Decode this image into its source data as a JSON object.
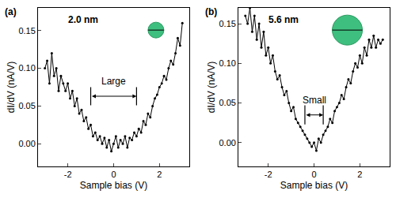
{
  "chart_data": [
    {
      "type": "line",
      "title": "(a)",
      "x_label": "Sample bias (V)",
      "y_label": "dI/dV (nA/V)",
      "x": [
        -3.0,
        -2.9,
        -2.8,
        -2.7,
        -2.6,
        -2.5,
        -2.4,
        -2.3,
        -2.2,
        -2.1,
        -2.0,
        -1.9,
        -1.8,
        -1.7,
        -1.6,
        -1.5,
        -1.4,
        -1.3,
        -1.2,
        -1.1,
        -1.0,
        -0.9,
        -0.8,
        -0.7,
        -0.6,
        -0.5,
        -0.4,
        -0.3,
        -0.2,
        -0.1,
        0.0,
        0.1,
        0.2,
        0.3,
        0.4,
        0.5,
        0.6,
        0.7,
        0.8,
        0.9,
        1.0,
        1.1,
        1.2,
        1.3,
        1.4,
        1.5,
        1.6,
        1.7,
        1.8,
        1.9,
        2.0,
        2.1,
        2.2,
        2.3,
        2.4,
        2.5,
        2.6,
        2.7,
        2.8,
        2.9,
        3.0
      ],
      "values": [
        0.1,
        0.11,
        0.08,
        0.12,
        0.09,
        0.1,
        0.07,
        0.09,
        0.08,
        0.07,
        0.08,
        0.06,
        0.07,
        0.05,
        0.06,
        0.04,
        0.045,
        0.03,
        0.035,
        0.02,
        0.025,
        0.01,
        0.015,
        0.005,
        0.01,
        0.0,
        0.008,
        -0.005,
        0.005,
        -0.01,
        0.0,
        0.01,
        -0.005,
        0.005,
        0.0,
        0.01,
        -0.005,
        0.008,
        0.005,
        0.015,
        0.01,
        0.02,
        0.015,
        0.03,
        0.025,
        0.04,
        0.035,
        0.05,
        0.06,
        0.065,
        0.075,
        0.08,
        0.09,
        0.085,
        0.1,
        0.11,
        0.105,
        0.12,
        0.14,
        0.13,
        0.16
      ],
      "color": "#000000",
      "marker": "circle",
      "xlim": [
        -3.3,
        3.3
      ],
      "xticks": [
        -2,
        0,
        2
      ],
      "ylim": [
        -0.03,
        0.18
      ],
      "yticks": [
        {
          "value": 0,
          "label": "0.00"
        },
        {
          "value": 0.05,
          "label": "0.05"
        },
        {
          "value": 0.1,
          "label": "0.10"
        },
        {
          "value": 0.15,
          "label": "0.15"
        }
      ],
      "annotations": [
        {
          "text": "2.0 nm"
        },
        {
          "text": "Large",
          "span": [
            -1,
            1
          ],
          "y": 0.063
        }
      ]
    },
    {
      "type": "line",
      "title": "(b)",
      "x_label": "Sample bias (V)",
      "y_label": "dI/dV (nA/V)",
      "x": [
        -3.0,
        -2.9,
        -2.8,
        -2.7,
        -2.6,
        -2.5,
        -2.4,
        -2.3,
        -2.2,
        -2.1,
        -2.0,
        -1.9,
        -1.8,
        -1.7,
        -1.6,
        -1.5,
        -1.4,
        -1.3,
        -1.2,
        -1.1,
        -1.0,
        -0.9,
        -0.8,
        -0.7,
        -0.6,
        -0.5,
        -0.4,
        -0.3,
        -0.2,
        -0.1,
        0.0,
        0.1,
        0.2,
        0.3,
        0.4,
        0.5,
        0.6,
        0.7,
        0.8,
        0.9,
        1.0,
        1.1,
        1.2,
        1.3,
        1.4,
        1.5,
        1.6,
        1.7,
        1.8,
        1.9,
        2.0,
        2.1,
        2.2,
        2.3,
        2.4,
        2.5,
        2.6,
        2.7,
        2.8,
        2.9,
        3.0
      ],
      "values": [
        0.16,
        0.15,
        0.17,
        0.14,
        0.16,
        0.13,
        0.15,
        0.12,
        0.14,
        0.11,
        0.12,
        0.1,
        0.11,
        0.09,
        0.08,
        0.085,
        0.07,
        0.06,
        0.065,
        0.05,
        0.04,
        0.045,
        0.03,
        0.025,
        0.02,
        0.015,
        0.01,
        0.005,
        0.0,
        -0.005,
        0.0,
        -0.01,
        0.005,
        0.0,
        0.01,
        0.015,
        0.02,
        0.03,
        0.025,
        0.04,
        0.045,
        0.05,
        0.06,
        0.055,
        0.07,
        0.08,
        0.075,
        0.09,
        0.1,
        0.095,
        0.11,
        0.1,
        0.12,
        0.11,
        0.13,
        0.12,
        0.135,
        0.12,
        0.13,
        0.125,
        0.13
      ],
      "color": "#000000",
      "marker": "circle",
      "xlim": [
        -3.3,
        3.3
      ],
      "xticks": [
        -2,
        0,
        2
      ],
      "ylim": [
        -0.03,
        0.17
      ],
      "yticks": [
        {
          "value": 0,
          "label": "0.00"
        },
        {
          "value": 0.05,
          "label": "0.05"
        },
        {
          "value": 0.1,
          "label": "0.10"
        },
        {
          "value": 0.15,
          "label": "0.15"
        }
      ],
      "annotations": [
        {
          "text": "5.6 nm"
        },
        {
          "text": "Small",
          "span": [
            -0.4,
            0.4
          ],
          "y": 0.035
        }
      ]
    }
  ]
}
